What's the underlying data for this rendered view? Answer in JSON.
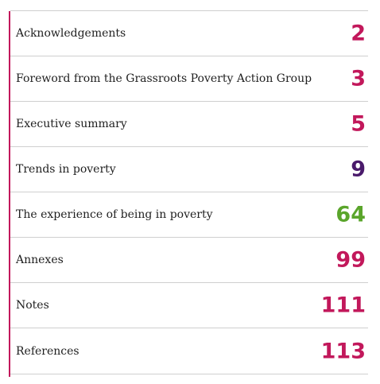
{
  "colors": {
    "accent": "#c2185b",
    "magenta": "#c2185b",
    "purple": "#4a1a6b",
    "green": "#5aa52b",
    "divider": "#cfcfcf"
  },
  "toc": {
    "entries": [
      {
        "label": "Acknowledgements",
        "page": "2",
        "color": "#c2185b"
      },
      {
        "label": "Foreword from the Grassroots Poverty Action Group",
        "page": "3",
        "color": "#c2185b"
      },
      {
        "label": "Executive summary",
        "page": "5",
        "color": "#c2185b"
      },
      {
        "label": "Trends in poverty",
        "page": "9",
        "color": "#4a1a6b"
      },
      {
        "label": "The experience of being in poverty",
        "page": "64",
        "color": "#5aa52b"
      },
      {
        "label": "Annexes",
        "page": "99",
        "color": "#c2185b"
      },
      {
        "label": "Notes",
        "page": "111",
        "color": "#c2185b"
      },
      {
        "label": "References",
        "page": "113",
        "color": "#c2185b"
      }
    ]
  }
}
